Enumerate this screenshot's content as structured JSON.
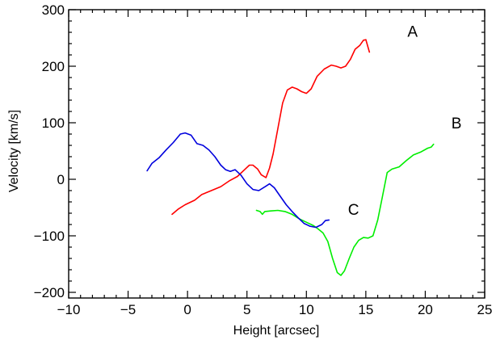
{
  "chart_data": {
    "type": "line",
    "title": "",
    "xlabel": "Height [arcsec]",
    "ylabel": "Velocity [km/s]",
    "xlim": [
      -10,
      25
    ],
    "ylim": [
      -210,
      300
    ],
    "xticks": [
      -10,
      -5,
      0,
      5,
      10,
      15,
      20,
      25
    ],
    "yticks": [
      -200,
      -100,
      0,
      100,
      200,
      300
    ],
    "xtick_labels": [
      "−10",
      "−5",
      "0",
      "5",
      "10",
      "15",
      "20",
      "25"
    ],
    "ytick_labels": [
      "−200",
      "−100",
      "0",
      "100",
      "200",
      "300"
    ],
    "grid": false,
    "legend": "none",
    "series": [
      {
        "name": "A",
        "color": "#ff0000",
        "label_pos": [
          18.5,
          252
        ],
        "points": [
          [
            -1.3,
            -62
          ],
          [
            -0.8,
            -53
          ],
          [
            -0.2,
            -45
          ],
          [
            0.6,
            -37
          ],
          [
            1.2,
            -27
          ],
          [
            2.0,
            -20
          ],
          [
            2.8,
            -13
          ],
          [
            3.5,
            -3
          ],
          [
            4.2,
            5
          ],
          [
            4.8,
            17
          ],
          [
            5.2,
            25
          ],
          [
            5.5,
            25
          ],
          [
            5.9,
            18
          ],
          [
            6.2,
            8
          ],
          [
            6.6,
            3
          ],
          [
            6.9,
            20
          ],
          [
            7.2,
            45
          ],
          [
            7.6,
            90
          ],
          [
            8.0,
            135
          ],
          [
            8.4,
            158
          ],
          [
            8.8,
            163
          ],
          [
            9.2,
            160
          ],
          [
            9.6,
            155
          ],
          [
            10.0,
            152
          ],
          [
            10.4,
            160
          ],
          [
            10.9,
            182
          ],
          [
            11.5,
            195
          ],
          [
            12.1,
            202
          ],
          [
            12.5,
            200
          ],
          [
            12.9,
            197
          ],
          [
            13.3,
            200
          ],
          [
            13.7,
            212
          ],
          [
            14.1,
            230
          ],
          [
            14.5,
            237
          ],
          [
            14.8,
            246
          ],
          [
            15.0,
            247
          ],
          [
            15.3,
            225
          ]
        ]
      },
      {
        "name": "B",
        "color": "#00ee00",
        "label_pos": [
          22.2,
          90
        ],
        "points": [
          [
            5.8,
            -55
          ],
          [
            6.1,
            -57
          ],
          [
            6.3,
            -62
          ],
          [
            6.5,
            -57
          ],
          [
            7.0,
            -56
          ],
          [
            7.6,
            -55
          ],
          [
            8.2,
            -57
          ],
          [
            8.8,
            -62
          ],
          [
            9.4,
            -70
          ],
          [
            10.0,
            -76
          ],
          [
            10.6,
            -82
          ],
          [
            11.0,
            -88
          ],
          [
            11.4,
            -95
          ],
          [
            11.8,
            -110
          ],
          [
            12.2,
            -140
          ],
          [
            12.6,
            -165
          ],
          [
            12.9,
            -170
          ],
          [
            13.2,
            -162
          ],
          [
            13.6,
            -140
          ],
          [
            14.0,
            -120
          ],
          [
            14.4,
            -108
          ],
          [
            14.8,
            -103
          ],
          [
            15.2,
            -104
          ],
          [
            15.6,
            -100
          ],
          [
            16.0,
            -72
          ],
          [
            16.4,
            -30
          ],
          [
            16.8,
            12
          ],
          [
            17.2,
            18
          ],
          [
            17.8,
            22
          ],
          [
            18.4,
            33
          ],
          [
            19.0,
            43
          ],
          [
            19.6,
            48
          ],
          [
            20.2,
            55
          ],
          [
            20.5,
            57
          ],
          [
            20.7,
            62
          ]
        ]
      },
      {
        "name": "C",
        "color": "#0000dd",
        "label_pos": [
          13.5,
          -63
        ],
        "points": [
          [
            -3.4,
            15
          ],
          [
            -3.0,
            28
          ],
          [
            -2.4,
            38
          ],
          [
            -1.8,
            52
          ],
          [
            -1.2,
            65
          ],
          [
            -0.6,
            80
          ],
          [
            -0.2,
            82
          ],
          [
            0.3,
            78
          ],
          [
            0.8,
            63
          ],
          [
            1.3,
            60
          ],
          [
            1.8,
            52
          ],
          [
            2.3,
            40
          ],
          [
            2.8,
            25
          ],
          [
            3.2,
            17
          ],
          [
            3.6,
            14
          ],
          [
            4.0,
            17
          ],
          [
            4.5,
            7
          ],
          [
            5.0,
            -8
          ],
          [
            5.5,
            -18
          ],
          [
            6.0,
            -20
          ],
          [
            6.6,
            -12
          ],
          [
            6.9,
            -8
          ],
          [
            7.3,
            -15
          ],
          [
            7.8,
            -30
          ],
          [
            8.3,
            -45
          ],
          [
            8.8,
            -57
          ],
          [
            9.3,
            -68
          ],
          [
            9.8,
            -78
          ],
          [
            10.3,
            -83
          ],
          [
            10.8,
            -85
          ],
          [
            11.3,
            -80
          ],
          [
            11.6,
            -73
          ],
          [
            11.9,
            -72
          ]
        ]
      }
    ]
  }
}
